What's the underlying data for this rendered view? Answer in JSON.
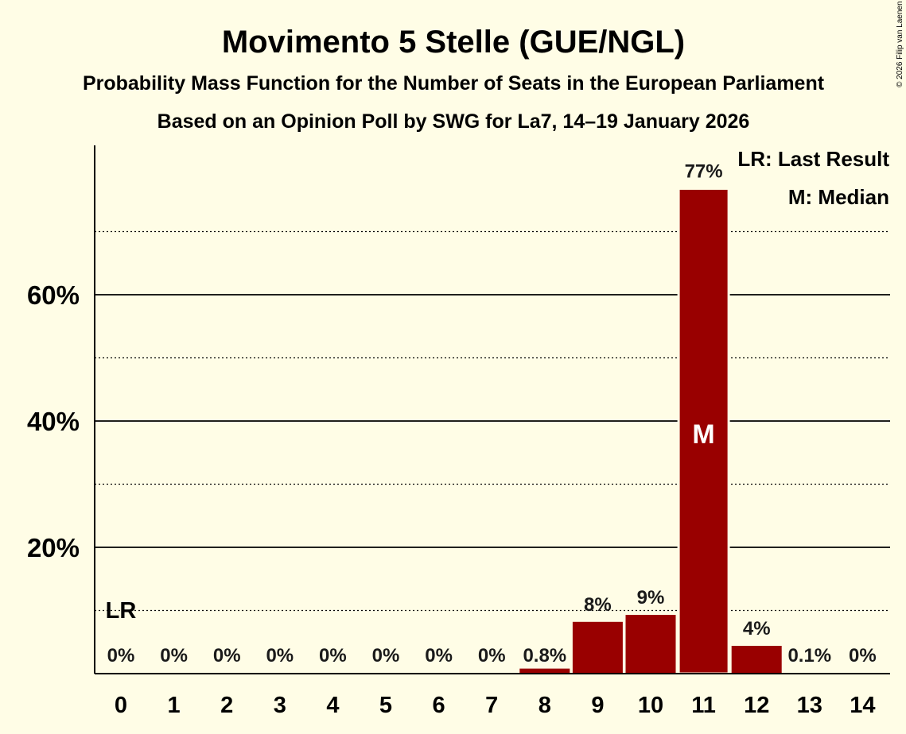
{
  "chart_data": {
    "type": "bar",
    "title": "Movimento 5 Stelle (GUE/NGL)",
    "subtitle": "Probability Mass Function for the Number of Seats in the European Parliament",
    "subtitle2": "Based on an Opinion Poll by SWG for La7, 14–19 January 2026",
    "xlabel": "",
    "ylabel": "",
    "categories": [
      "0",
      "1",
      "2",
      "3",
      "4",
      "5",
      "6",
      "7",
      "8",
      "9",
      "10",
      "11",
      "12",
      "13",
      "14"
    ],
    "values": [
      0,
      0,
      0,
      0,
      0,
      0,
      0,
      0,
      0.8,
      8.2,
      9.3,
      76.8,
      4.4,
      0.1,
      0
    ],
    "value_labels": [
      "0%",
      "0%",
      "0%",
      "0%",
      "0%",
      "0%",
      "0%",
      "0%",
      "0.8%",
      "8%",
      "9%",
      "77%",
      "4%",
      "0.1%",
      "0%"
    ],
    "ylim": [
      0,
      84
    ],
    "y_ticks": [
      20,
      40,
      60
    ],
    "y_tick_labels": [
      "20%",
      "40%",
      "60%"
    ],
    "y_dotted_gridlines": [
      10,
      30,
      50,
      70
    ],
    "bar_color": "#990000",
    "background_color": "#FFFDE6",
    "last_result_seat": "0",
    "last_result_marker": "LR",
    "median_seat": "11",
    "median_marker": "M",
    "legend": [
      "LR: Last Result",
      "M: Median"
    ],
    "legend_position": "top-right",
    "copyright": "© 2026 Filip van Laenen"
  }
}
